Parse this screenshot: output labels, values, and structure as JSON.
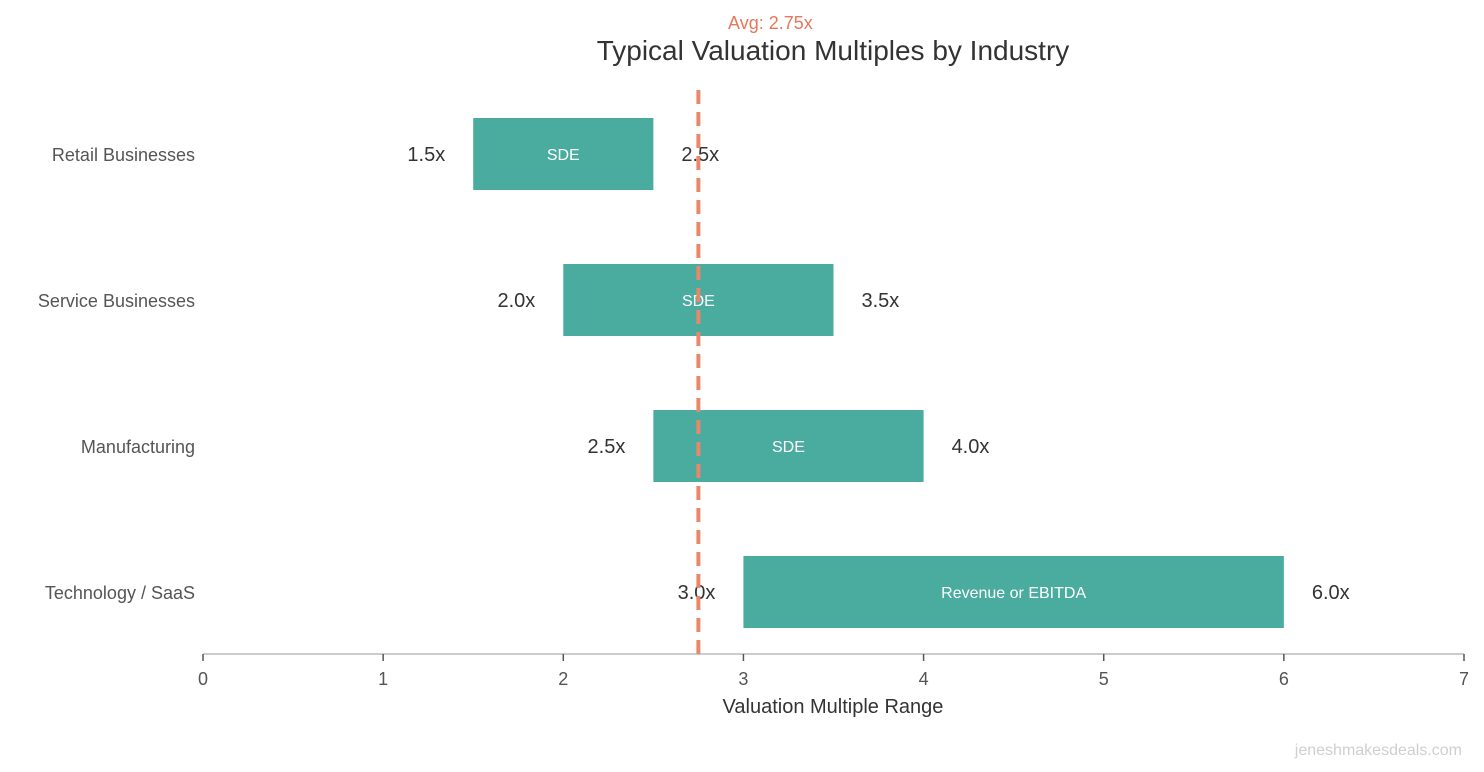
{
  "chart_data": {
    "type": "bar",
    "orientation": "horizontal-range",
    "title": "Typical Valuation Multiples by Industry",
    "xlabel": "Valuation Multiple Range",
    "ylabel": "",
    "xlim": [
      0,
      7
    ],
    "xticks": [
      "0",
      "1",
      "2",
      "3",
      "4",
      "5",
      "6",
      "7"
    ],
    "grid": false,
    "categories": [
      "Retail Businesses",
      "Service Businesses",
      "Manufacturing",
      "Technology / SaaS"
    ],
    "ranges": [
      {
        "low": 1.5,
        "high": 2.5,
        "low_label": "1.5x",
        "high_label": "2.5x",
        "basis": "SDE"
      },
      {
        "low": 2.0,
        "high": 3.5,
        "low_label": "2.0x",
        "high_label": "3.5x",
        "basis": "SDE"
      },
      {
        "low": 2.5,
        "high": 4.0,
        "low_label": "2.5x",
        "high_label": "4.0x",
        "basis": "SDE"
      },
      {
        "low": 3.0,
        "high": 6.0,
        "low_label": "3.0x",
        "high_label": "6.0x",
        "basis": "Revenue or EBITDA"
      }
    ],
    "average": {
      "value": 2.75,
      "label": "Avg: 2.75x"
    },
    "colors": {
      "bar": "#4aab9f",
      "average": "#e8876a",
      "average_text": "#e8765a"
    }
  },
  "watermark": "jeneshmakesdeals.com"
}
